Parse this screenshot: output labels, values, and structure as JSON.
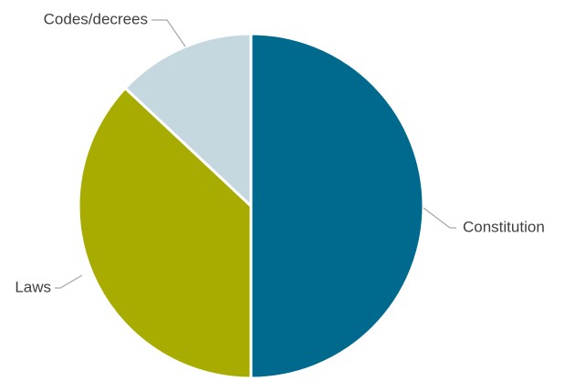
{
  "chart_data": {
    "type": "pie",
    "title": "",
    "start_angle_deg": 0,
    "direction": "clockwise",
    "legend": "none",
    "slices": [
      {
        "label": "Constitution",
        "value": 50.0,
        "color": "#006a8e"
      },
      {
        "label": "Laws",
        "value": 37.0,
        "color": "#a9ac00"
      },
      {
        "label": "Codes/decrees",
        "value": 13.0,
        "color": "#c5d7df"
      }
    ]
  }
}
